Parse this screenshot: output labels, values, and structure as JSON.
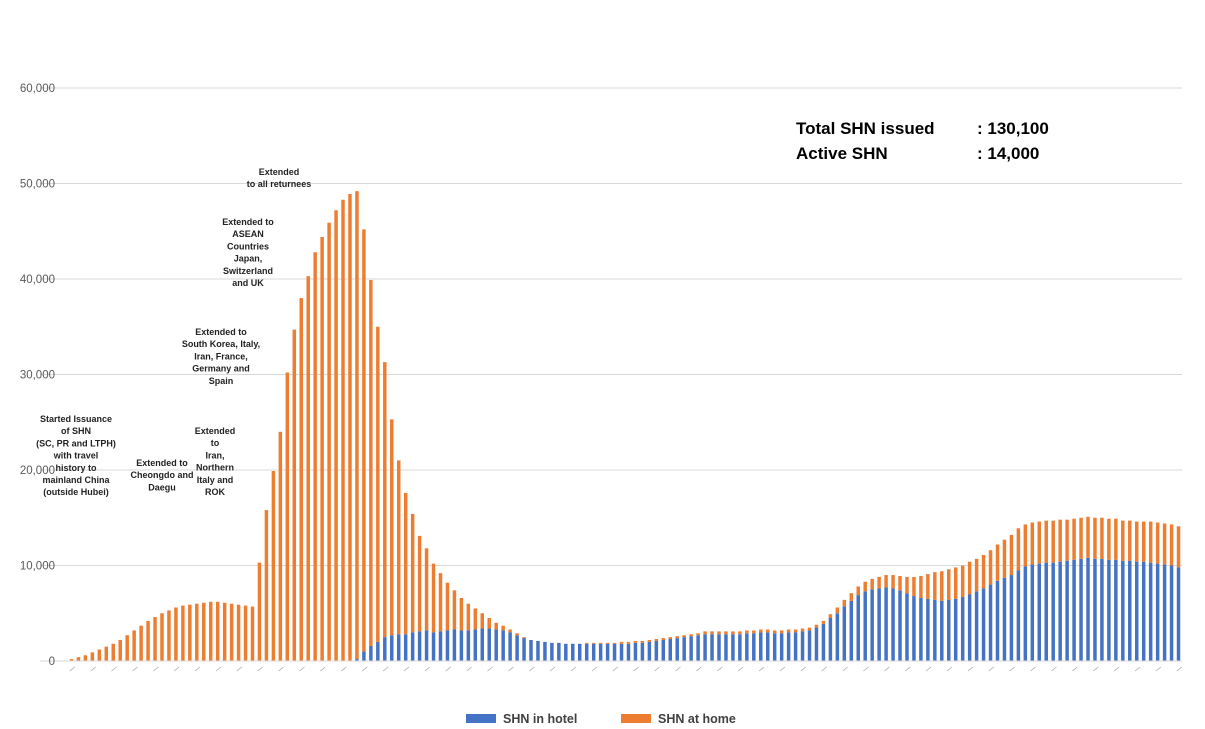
{
  "summary": [
    {
      "label": "Total SHN issued",
      "value": ": 130,100"
    },
    {
      "label": "Active SHN",
      "value": ": 14,000"
    }
  ],
  "annotations": [
    {
      "lines": [
        "Started Issuance",
        "of SHN",
        "(SC, PR and LTPH)",
        "with travel",
        "history to",
        "mainland China",
        "(outside Hubei)"
      ]
    },
    {
      "lines": [
        "Extended to",
        "Cheongdo and",
        "Daegu"
      ]
    },
    {
      "lines": [
        "Extended",
        "to",
        "Iran,",
        "Northern",
        "Italy and",
        "ROK"
      ]
    },
    {
      "lines": [
        "Extended to",
        "South Korea, Italy,",
        "Iran, France,",
        "Germany and",
        "Spain"
      ]
    },
    {
      "lines": [
        "Extended to",
        "ASEAN",
        "Countries",
        "Japan,",
        "Switzerland",
        "and UK"
      ]
    },
    {
      "lines": [
        "Extended",
        "to all returnees"
      ]
    }
  ],
  "chart_data": {
    "type": "bar",
    "stacked": true,
    "grid": true,
    "legend_position": "bottom",
    "ylim": [
      0,
      60000
    ],
    "yticks": [
      "0",
      "10,000",
      "20,000",
      "30,000",
      "40,000",
      "50,000",
      "60,000"
    ],
    "series": [
      {
        "name": "SHN in hotel",
        "color": "#4472C4",
        "values": [
          0,
          0,
          0,
          0,
          0,
          0,
          0,
          0,
          0,
          0,
          0,
          0,
          0,
          0,
          0,
          0,
          0,
          0,
          0,
          0,
          0,
          0,
          0,
          0,
          0,
          0,
          0,
          0,
          0,
          0,
          0,
          0,
          0,
          0,
          0,
          0,
          0,
          0,
          0,
          0,
          0,
          200,
          1000,
          1600,
          2000,
          2500,
          2700,
          2800,
          2800,
          3000,
          3100,
          3200,
          3000,
          3100,
          3200,
          3300,
          3200,
          3200,
          3300,
          3400,
          3400,
          3300,
          3200,
          3000,
          2700,
          2400,
          2200,
          2100,
          2000,
          1900,
          1900,
          1800,
          1800,
          1800,
          1800,
          1800,
          1800,
          1800,
          1800,
          1800,
          1800,
          1900,
          1900,
          2000,
          2100,
          2200,
          2300,
          2400,
          2500,
          2600,
          2700,
          2800,
          2800,
          2800,
          2800,
          2800,
          2800,
          2900,
          2900,
          3000,
          3000,
          2900,
          2900,
          3000,
          3000,
          3100,
          3200,
          3500,
          3900,
          4500,
          5000,
          5700,
          6300,
          6900,
          7300,
          7500,
          7600,
          7700,
          7600,
          7400,
          7100,
          6800,
          6600,
          6500,
          6400,
          6300,
          6400,
          6500,
          6700,
          7000,
          7300,
          7600,
          8000,
          8400,
          8700,
          9000,
          9500,
          9900,
          10100,
          10200,
          10300,
          10300,
          10400,
          10500,
          10600,
          10700,
          10800,
          10700,
          10700,
          10600,
          10600,
          10500,
          10500,
          10400,
          10400,
          10300,
          10200,
          10100,
          10000,
          9800
        ]
      },
      {
        "name": "SHN at home",
        "color": "#ED7D31",
        "values": [
          200,
          400,
          600,
          900,
          1200,
          1500,
          1800,
          2200,
          2700,
          3200,
          3700,
          4200,
          4600,
          5000,
          5300,
          5600,
          5800,
          5900,
          6000,
          6100,
          6200,
          6200,
          6100,
          6000,
          5900,
          5800,
          5700,
          10300,
          15800,
          19900,
          24000,
          30200,
          34700,
          38000,
          40300,
          42800,
          44400,
          45900,
          47200,
          48300,
          48900,
          49000,
          44200,
          38300,
          33000,
          28800,
          22600,
          18200,
          14800,
          12400,
          10000,
          8600,
          7200,
          6100,
          5000,
          4100,
          3400,
          2800,
          2200,
          1600,
          1100,
          700,
          500,
          300,
          200,
          100,
          0,
          0,
          0,
          0,
          0,
          0,
          0,
          0,
          100,
          100,
          100,
          100,
          100,
          200,
          200,
          200,
          200,
          200,
          200,
          200,
          200,
          200,
          200,
          200,
          200,
          300,
          300,
          300,
          300,
          300,
          300,
          300,
          300,
          300,
          300,
          300,
          300,
          300,
          300,
          300,
          300,
          300,
          300,
          400,
          600,
          700,
          800,
          900,
          1000,
          1100,
          1200,
          1300,
          1400,
          1500,
          1700,
          2000,
          2300,
          2600,
          2900,
          3100,
          3200,
          3300,
          3300,
          3400,
          3400,
          3500,
          3600,
          3800,
          4000,
          4200,
          4400,
          4400,
          4400,
          4400,
          4400,
          4400,
          4400,
          4300,
          4300,
          4300,
          4300,
          4300,
          4300,
          4300,
          4300,
          4200,
          4200,
          4200,
          4200,
          4300,
          4300,
          4300,
          4300,
          4300,
          4300,
          4300,
          4300
        ]
      }
    ]
  }
}
